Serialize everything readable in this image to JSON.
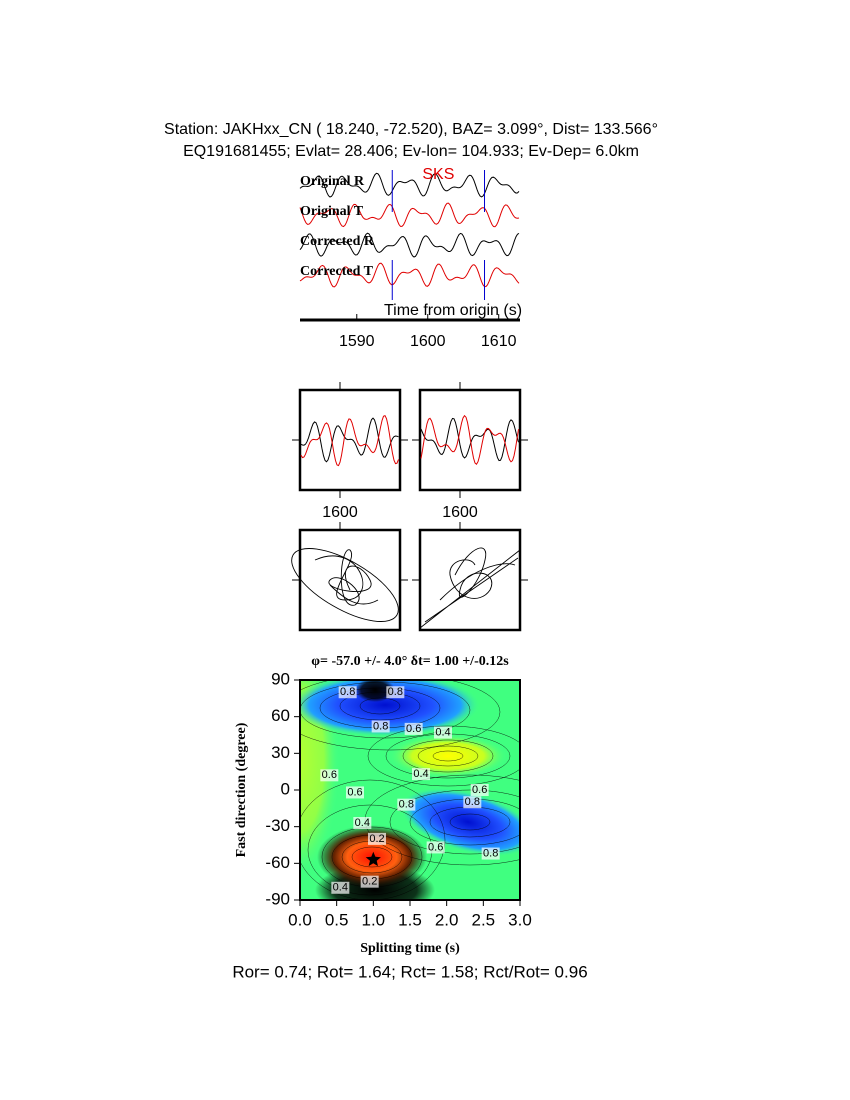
{
  "header": {
    "line1": "Station: JAKHxx_CN (  18.240,  -72.520), BAZ=    3.099°, Dist=  133.566°",
    "line2": "EQ191681455; Evlat=  28.406; Ev-lon= 104.933; Ev-Dep=  6.0km"
  },
  "waveforms": {
    "phase": "SKS",
    "traces": [
      "Original R",
      "Original T",
      "Corrected R",
      "Corrected T"
    ],
    "xlabel": "Time from origin (s)",
    "xlim": [
      1582,
      1613
    ],
    "xticks": [
      1590,
      1600,
      1610
    ],
    "window": [
      1595,
      1608
    ]
  },
  "windows": [
    {
      "xtick": 1600
    },
    {
      "xtick": 1600
    }
  ],
  "chart_data": {
    "type": "contour",
    "title": "φ= -57.0 +/- 4.0° δt= 1.00 +/-0.12s",
    "xlabel": "Splitting time (s)",
    "ylabel": "Fast direction (degree)",
    "xlim": [
      0,
      3
    ],
    "ylim": [
      -90,
      90
    ],
    "xticks": [
      {
        "value": 0,
        "label": "0.0"
      },
      {
        "value": 0.5,
        "label": "0.5"
      },
      {
        "value": 1,
        "label": "1.0"
      },
      {
        "value": 1.5,
        "label": "1.5"
      },
      {
        "value": 2,
        "label": "2.0"
      },
      {
        "value": 2.5,
        "label": "2.5"
      },
      {
        "value": 3,
        "label": "3.0"
      }
    ],
    "yticks": [
      -90,
      -60,
      -30,
      0,
      30,
      60,
      90
    ],
    "best": {
      "x": 1.0,
      "y": -57.0
    },
    "contour_labels": [
      {
        "x": 0.65,
        "y": 80,
        "label": "0.8"
      },
      {
        "x": 1.3,
        "y": 80,
        "label": "0.8"
      },
      {
        "x": 1.1,
        "y": 52,
        "label": "0.8"
      },
      {
        "x": 1.55,
        "y": 50,
        "label": "0.6"
      },
      {
        "x": 1.95,
        "y": 47,
        "label": "0.4"
      },
      {
        "x": 1.65,
        "y": 13,
        "label": "0.4"
      },
      {
        "x": 0.4,
        "y": 12,
        "label": "0.6"
      },
      {
        "x": 0.75,
        "y": -2,
        "label": "0.6"
      },
      {
        "x": 1.45,
        "y": -12,
        "label": "0.8"
      },
      {
        "x": 2.45,
        "y": 0,
        "label": "0.6"
      },
      {
        "x": 2.35,
        "y": -10,
        "label": "0.8"
      },
      {
        "x": 0.85,
        "y": -27,
        "label": "0.4"
      },
      {
        "x": 1.05,
        "y": -40,
        "label": "0.2"
      },
      {
        "x": 1.85,
        "y": -47,
        "label": "0.6"
      },
      {
        "x": 2.6,
        "y": -52,
        "label": "0.8"
      },
      {
        "x": 0.95,
        "y": -75,
        "label": "0.2"
      },
      {
        "x": 0.55,
        "y": -80,
        "label": "0.4"
      }
    ]
  },
  "footer": "Ror= 0.74; Rot= 1.64; Rct= 1.58; Rct/Rot= 0.96"
}
